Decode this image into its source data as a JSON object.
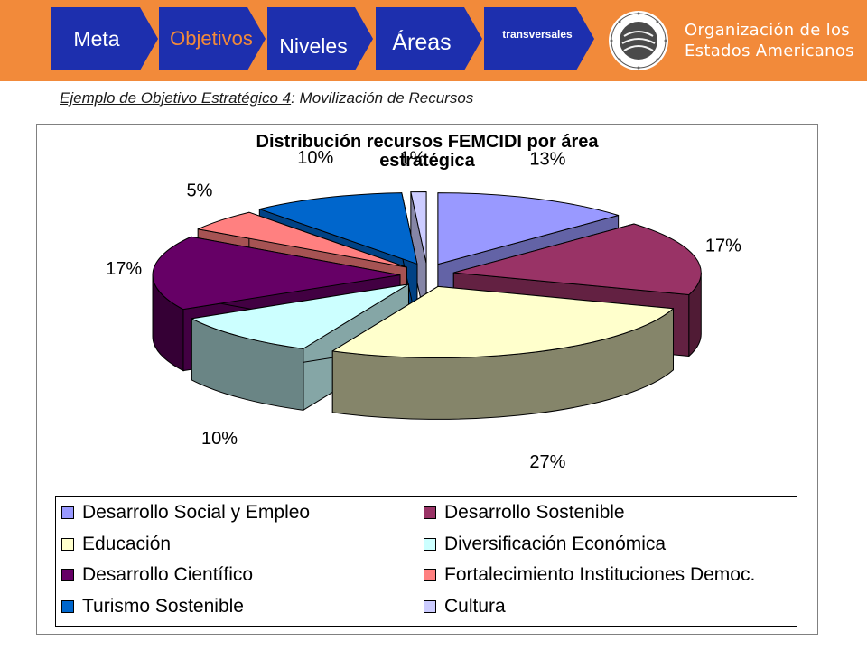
{
  "header": {
    "steps": [
      {
        "label": "Meta",
        "fill": "#1d2fae",
        "text_color": "#ffffff"
      },
      {
        "label": "Objetivos",
        "fill": "#1d2fae",
        "text_color": "#f28a3a"
      },
      {
        "label": "Niveles",
        "fill": "#1d2fae",
        "text_color": "#ffffff"
      },
      {
        "label": "Áreas",
        "fill": "#1d2fae",
        "text_color": "#ffffff"
      },
      {
        "label": "transversales",
        "fill": "#1d2fae",
        "text_color": "#ffffff"
      }
    ],
    "org_name": [
      "Organización de los",
      "Estados Americanos"
    ],
    "logo_icon": "oas-seal-icon",
    "band_color": "#f28a3a"
  },
  "subtitle": {
    "underlined": "Ejemplo de Objetivo Estratégico 4",
    "rest": ": Movilización de Recursos"
  },
  "chart_data": {
    "type": "pie",
    "style": "3d-exploded",
    "title": "Distribución recursos FEMCIDI por área estratégica",
    "title_lines": [
      "Distribución recursos FEMCIDI por área",
      "estratégica"
    ],
    "legend_position": "bottom",
    "series": [
      {
        "name": "Desarrollo Social y Empleo",
        "value": 13,
        "label": "13%",
        "color": "#9999ff"
      },
      {
        "name": "Desarrollo Sostenible",
        "value": 17,
        "label": "17%",
        "color": "#993366"
      },
      {
        "name": "Educación",
        "value": 27,
        "label": "27%",
        "color": "#ffffcc"
      },
      {
        "name": "Diversificación Económica",
        "value": 10,
        "label": "10%",
        "color": "#ccffff"
      },
      {
        "name": "Desarrollo Científico",
        "value": 17,
        "label": "17%",
        "color": "#660066"
      },
      {
        "name": "Fortalecimiento Instituciones Democ.",
        "value": 5,
        "label": "5%",
        "color": "#ff8080"
      },
      {
        "name": "Turismo Sostenible",
        "value": 10,
        "label": "10%",
        "color": "#0066cc"
      },
      {
        "name": "Cultura",
        "value": 1,
        "label": "1%",
        "color": "#ccccff"
      }
    ]
  }
}
